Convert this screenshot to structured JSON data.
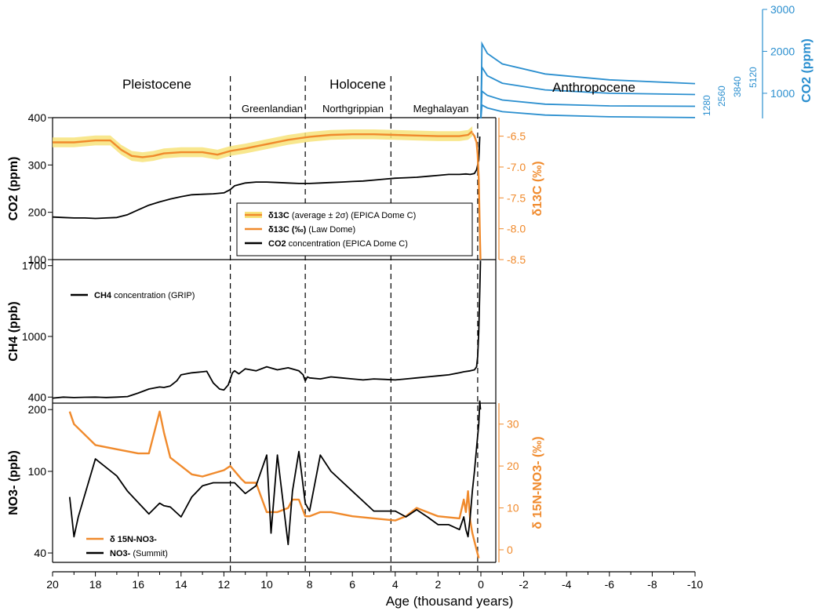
{
  "colors": {
    "co2": "#000000",
    "d13c": "#f08a2c",
    "band": "#f7e37a",
    "ch4": "#000000",
    "no3": "#000000",
    "d15n": "#f08a2c",
    "anthro": "#2b8fcf"
  },
  "eras": [
    "Pleistocene",
    "Holocene",
    "Anthropocene"
  ],
  "stages": [
    "Greenlandian",
    "Northgrippian",
    "Meghalayan"
  ],
  "chart_data": {
    "type": "line",
    "xlabel": "Age (thousand years)",
    "xlim": [
      20,
      -10
    ],
    "x_ticks": [
      "20",
      "18",
      "16",
      "14",
      "12",
      "10",
      "8",
      "6",
      "4",
      "2",
      "0",
      "-2",
      "-4",
      "-6",
      "-8",
      "-10"
    ],
    "boundaries_kyr": [
      11.7,
      8.2,
      4.2,
      0.15
    ],
    "panels": [
      {
        "id": "co2",
        "ylabel": "CO2 (ppm)",
        "ylim": [
          100,
          400
        ],
        "y_ticks": [
          "100",
          "200",
          "300",
          "400"
        ],
        "right_ylabel": "δ13C (‰)",
        "right_ylim": [
          -8.5,
          -6.2
        ],
        "right_ticks": [
          "-6.5",
          "-7.0",
          "-7.5",
          "-8.0",
          "-8.5"
        ],
        "legend": [
          {
            "bold": "δ13C",
            "rest": " (average ± 2σ) (EPICA Dome C)"
          },
          {
            "bold": "δ13C (‰)",
            "rest": " (Law Dome)"
          },
          {
            "bold": "CO2",
            "rest": " concentration (EPICA Dome C)"
          }
        ],
        "series": [
          {
            "name": "CO2 concentration (EPICA Dome C)",
            "x": [
              20,
              19.5,
              19,
              18.5,
              18,
              17.5,
              17,
              16.5,
              16,
              15.5,
              15,
              14.5,
              14,
              13.5,
              13,
              12.5,
              12,
              11.7,
              11.5,
              11,
              10.5,
              10,
              9.5,
              9,
              8.5,
              8,
              7.5,
              7,
              6.5,
              6,
              5.5,
              5,
              4.5,
              4,
              3.5,
              3,
              2.5,
              2,
              1.5,
              1,
              0.7,
              0.5,
              0.3,
              0.2,
              0.1,
              0.05
            ],
            "y": [
              190,
              189,
              188,
              188,
              187,
              188,
              189,
              195,
              205,
              215,
              222,
              228,
              233,
              237,
              238,
              239,
              241,
              248,
              256,
              262,
              264,
              264,
              263,
              262,
              261,
              261,
              262,
              263,
              264,
              265,
              266,
              268,
              270,
              272,
              273,
              274,
              276,
              278,
              280,
              280,
              281,
              280,
              282,
              290,
              310,
              360
            ]
          },
          {
            "name": "δ13C (average ± 2σ) (EPICA Dome C)",
            "axis": "right",
            "band": 0.08,
            "x": [
              20,
              19,
              18,
              17.3,
              16.8,
              16.3,
              15.8,
              15.3,
              14.8,
              14,
              13,
              12.3,
              11.7,
              11,
              10,
              9,
              8,
              7,
              6,
              5,
              4,
              3,
              2,
              1,
              0.6,
              0.4
            ],
            "y": [
              -6.6,
              -6.6,
              -6.57,
              -6.57,
              -6.72,
              -6.82,
              -6.84,
              -6.82,
              -6.78,
              -6.76,
              -6.76,
              -6.8,
              -6.74,
              -6.7,
              -6.63,
              -6.56,
              -6.51,
              -6.48,
              -6.47,
              -6.47,
              -6.48,
              -6.49,
              -6.5,
              -6.5,
              -6.48,
              -6.42
            ]
          },
          {
            "name": "δ13C (‰) (Law Dome)",
            "axis": "right",
            "x": [
              0.4,
              0.3,
              0.2,
              0.15,
              0.1,
              0.07,
              0.04,
              0.02
            ],
            "y": [
              -6.45,
              -6.5,
              -6.6,
              -6.8,
              -7.2,
              -7.7,
              -8.2,
              -8.5
            ]
          }
        ]
      },
      {
        "id": "ch4",
        "ylabel": "CH4 (ppb)",
        "ylim": [
          340,
          1760
        ],
        "y_ticks": [
          "400",
          "1000",
          "1700"
        ],
        "legend": [
          {
            "bold": "CH4",
            "rest": " concentration (GRIP)"
          }
        ],
        "series": [
          {
            "name": "CH4 concentration (GRIP)",
            "x": [
              20,
              19.5,
              19,
              18.5,
              18,
              17.5,
              17,
              16.5,
              16,
              15.5,
              15,
              14.8,
              14.5,
              14.2,
              14,
              13.5,
              13,
              12.8,
              12.5,
              12.2,
              12,
              11.8,
              11.6,
              11.5,
              11.3,
              11,
              10.5,
              10,
              9.5,
              9,
              8.5,
              8.3,
              8.2,
              8.1,
              8,
              7.5,
              7,
              6.5,
              6,
              5.5,
              5,
              4.5,
              4,
              3.5,
              3,
              2.5,
              2,
              1.5,
              1,
              0.8,
              0.5,
              0.3,
              0.2,
              0.15,
              0.1,
              0.05,
              0.02
            ],
            "y": [
              390,
              400,
              395,
              398,
              400,
              396,
              400,
              405,
              440,
              480,
              500,
              495,
              510,
              560,
              620,
              640,
              650,
              655,
              540,
              480,
              470,
              520,
              640,
              660,
              630,
              680,
              660,
              700,
              670,
              690,
              660,
              620,
              560,
              600,
              590,
              580,
              600,
              590,
              580,
              570,
              580,
              575,
              570,
              580,
              590,
              600,
              610,
              620,
              640,
              650,
              660,
              670,
              700,
              800,
              1050,
              1450,
              1750
            ]
          }
        ]
      },
      {
        "id": "no3",
        "ylabel": "NO3- (ppb)",
        "ylim": [
          36,
          215
        ],
        "y_ticks": [
          "40",
          "100",
          "200"
        ],
        "right_ylabel": "δ 15N-NO3- (‰)",
        "right_ylim": [
          -3,
          35
        ],
        "right_ticks": [
          "0",
          "10",
          "20",
          "30"
        ],
        "legend": [
          {
            "bold": "δ 15N-NO3-",
            "rest": ""
          },
          {
            "bold": "NO3-",
            "rest": "    (Summit)"
          }
        ],
        "series": [
          {
            "name": "δ 15N-NO3-",
            "axis": "right",
            "x": [
              19.2,
              19,
              18,
              17,
              16,
              15.5,
              15,
              14.8,
              14.5,
              14,
              13.5,
              13,
              12,
              11.7,
              11.2,
              11,
              10.5,
              10,
              9.5,
              9,
              8.8,
              8.5,
              8.2,
              8,
              7.5,
              7,
              6,
              5,
              4,
              3.5,
              3,
              2,
              1,
              0.8,
              0.7,
              0.6,
              0.5,
              0.4,
              0.3,
              0.2,
              0.1
            ],
            "y": [
              33,
              30,
              25,
              24,
              23,
              23,
              33,
              28,
              22,
              20,
              18,
              17.5,
              19,
              20,
              17,
              16,
              16,
              9,
              9,
              10,
              12,
              12,
              8,
              8,
              9,
              9,
              8,
              7.5,
              7,
              8,
              10,
              8,
              7.5,
              12,
              9,
              14,
              7,
              4,
              2,
              0,
              -2
            ]
          },
          {
            "name": "NO3- (Summit)",
            "x": [
              19.2,
              19,
              18.8,
              18,
              17,
              16.5,
              15.5,
              15,
              14.8,
              14.5,
              14,
              13.5,
              13,
              12.5,
              12,
              11.7,
              11.5,
              11,
              10.5,
              10,
              9.8,
              9.5,
              9,
              8.8,
              8.5,
              8.2,
              8,
              7.5,
              7,
              6,
              5,
              4,
              3.5,
              3,
              2.5,
              2,
              1.5,
              1,
              0.8,
              0.7,
              0.6,
              0.5,
              0.4,
              0.3,
              0.2,
              0.1,
              0.05,
              0.02
            ],
            "y": [
              75,
              48,
              60,
              115,
              95,
              80,
              62,
              70,
              68,
              67,
              60,
              75,
              85,
              88,
              88,
              88,
              88,
              78,
              85,
              120,
              50,
              120,
              44,
              80,
              125,
              70,
              64,
              120,
              100,
              80,
              64,
              64,
              60,
              65,
              60,
              55,
              55,
              52,
              60,
              52,
              48,
              60,
              80,
              100,
              130,
              170,
              220,
              200
            ]
          }
        ]
      }
    ],
    "anthropocene": {
      "ylabel": "CO2 (ppm)",
      "ylim": [
        400,
        3000
      ],
      "y_ticks": [
        "1000",
        "2000",
        "3000"
      ],
      "scenario_labels": [
        "1280",
        "2560",
        "3840",
        "5120"
      ],
      "series": [
        {
          "name": "1280",
          "x": [
            0,
            -0.05,
            -0.3,
            -1,
            -3,
            -6,
            -10
          ],
          "y": [
            400,
            720,
            650,
            560,
            480,
            440,
            420
          ]
        },
        {
          "name": "2560",
          "x": [
            0,
            -0.05,
            -0.3,
            -1,
            -3,
            -6,
            -10
          ],
          "y": [
            400,
            1050,
            950,
            840,
            740,
            700,
            690
          ]
        },
        {
          "name": "3840",
          "x": [
            0,
            -0.05,
            -0.3,
            -1,
            -3,
            -6,
            -10
          ],
          "y": [
            400,
            1620,
            1420,
            1240,
            1080,
            1000,
            970
          ]
        },
        {
          "name": "5120",
          "x": [
            0,
            -0.05,
            -0.3,
            -1,
            -3,
            -6,
            -10
          ],
          "y": [
            400,
            2180,
            1950,
            1700,
            1460,
            1320,
            1230
          ]
        }
      ]
    }
  }
}
